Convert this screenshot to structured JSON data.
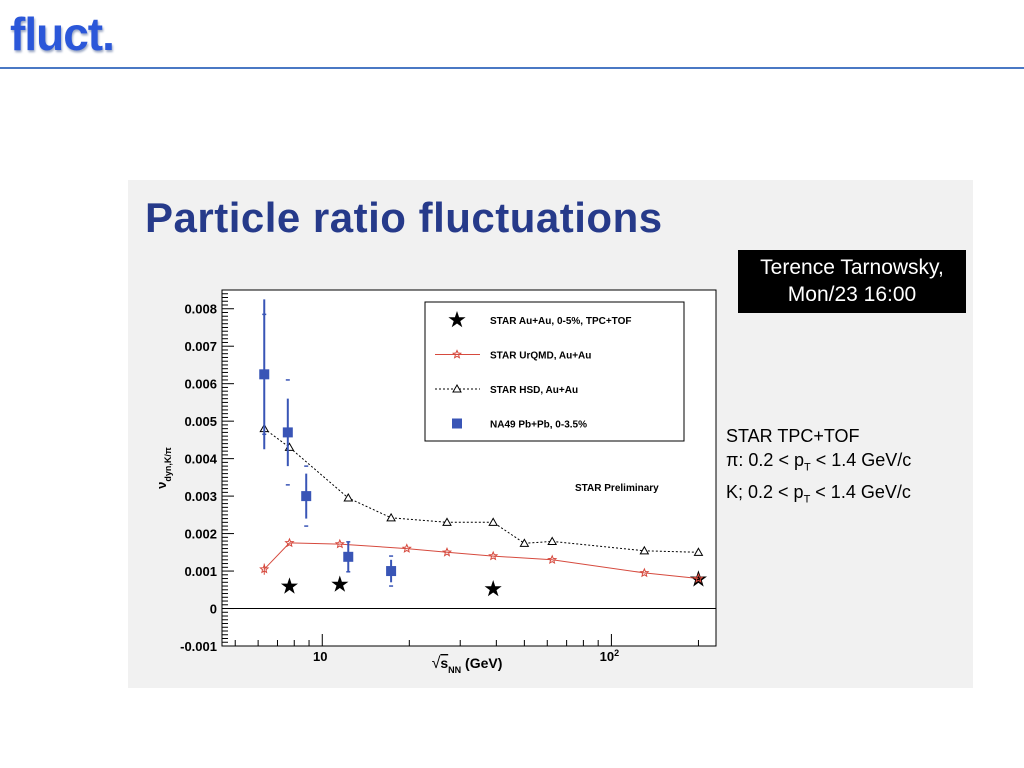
{
  "slide": {
    "title": "fluct.",
    "embedded_title": "Particle ratio fluctuations",
    "speaker_box": {
      "line1": "Terence Tarnowsky,",
      "line2": "Mon/23 16:00"
    },
    "conditions": {
      "line1": "STAR TPC+TOF",
      "line2_prefix": "π: 0.2 < p",
      "line2_sub": "T",
      "line2_suffix": " < 1.4 GeV/c",
      "line3_prefix": "K; 0.2 < p",
      "line3_sub": "T",
      "line3_suffix": " < 1.4 GeV/c"
    }
  },
  "chart_data": {
    "type": "scatter",
    "xlabel_sqrt": "√",
    "xlabel_main": "s",
    "xlabel_sub": "NN",
    "xlabel_unit": " (GeV)",
    "ylabel_main": "ν",
    "ylabel_sub": "dyn,K/π",
    "x_scale": "log",
    "xlim": [
      4.5,
      230
    ],
    "ylim": [
      -0.001,
      0.0085
    ],
    "x_tick_labels": [
      {
        "value": 10,
        "label": "10",
        "sup": ""
      },
      {
        "value": 100,
        "label": "10",
        "sup": "2"
      }
    ],
    "y_ticks": [
      {
        "value": 0.008,
        "label": "0.008"
      },
      {
        "value": 0.007,
        "label": "0.007"
      },
      {
        "value": 0.006,
        "label": "0.006"
      },
      {
        "value": 0.005,
        "label": "0.005"
      },
      {
        "value": 0.004,
        "label": "0.004"
      },
      {
        "value": 0.003,
        "label": "0.003"
      },
      {
        "value": 0.002,
        "label": "0.002"
      },
      {
        "value": 0.001,
        "label": "0.001"
      },
      {
        "value": 0,
        "label": "0"
      },
      {
        "value": -0.001,
        "label": "-0.001"
      }
    ],
    "annotation": "STAR Preliminary",
    "legend_position": "top-right",
    "series": [
      {
        "name": "STAR Au+Au, 0-5%, TPC+TOF",
        "marker": "star",
        "color": "#000000",
        "points": [
          {
            "x": 7.7,
            "y": 0.00059
          },
          {
            "x": 11.5,
            "y": 0.00064
          },
          {
            "x": 39,
            "y": 0.00052
          },
          {
            "x": 200,
            "y": 0.00078
          }
        ]
      },
      {
        "name": "STAR UrQMD, Au+Au",
        "marker": "star-small",
        "color": "#d64a3e",
        "line": "solid",
        "points": [
          {
            "x": 6.3,
            "y": 0.00105,
            "err": 0.00015
          },
          {
            "x": 7.7,
            "y": 0.00175
          },
          {
            "x": 11.5,
            "y": 0.00172
          },
          {
            "x": 19.6,
            "y": 0.0016
          },
          {
            "x": 27,
            "y": 0.0015
          },
          {
            "x": 39,
            "y": 0.0014
          },
          {
            "x": 62.4,
            "y": 0.0013
          },
          {
            "x": 130,
            "y": 0.00095
          },
          {
            "x": 200,
            "y": 0.0008
          }
        ]
      },
      {
        "name": "STAR HSD, Au+Au",
        "marker": "triangle-open",
        "color": "#000000",
        "line": "dotted",
        "points": [
          {
            "x": 6.3,
            "y": 0.0048,
            "err": 0.0005
          },
          {
            "x": 7.7,
            "y": 0.0043
          },
          {
            "x": 12.3,
            "y": 0.00295
          },
          {
            "x": 17.3,
            "y": 0.00242
          },
          {
            "x": 27,
            "y": 0.0023
          },
          {
            "x": 39,
            "y": 0.0023
          },
          {
            "x": 50,
            "y": 0.00174
          },
          {
            "x": 62.4,
            "y": 0.00179
          },
          {
            "x": 130,
            "y": 0.00154
          },
          {
            "x": 200,
            "y": 0.0015
          }
        ]
      },
      {
        "name": "NA49 Pb+Pb, 0-3.5%",
        "marker": "square",
        "color": "#3955b6",
        "points": [
          {
            "x": 6.3,
            "y": 0.00625,
            "err": 0.002,
            "syserr": 0.0016
          },
          {
            "x": 7.6,
            "y": 0.0047,
            "err": 0.0009,
            "syserr": 0.0014
          },
          {
            "x": 8.8,
            "y": 0.003,
            "err": 0.0006,
            "syserr": 0.0008
          },
          {
            "x": 12.3,
            "y": 0.00138,
            "err": 0.0004,
            "syserr": 0.0004
          },
          {
            "x": 17.3,
            "y": 0.001,
            "err": 0.0003,
            "syserr": 0.0004
          }
        ]
      }
    ]
  }
}
